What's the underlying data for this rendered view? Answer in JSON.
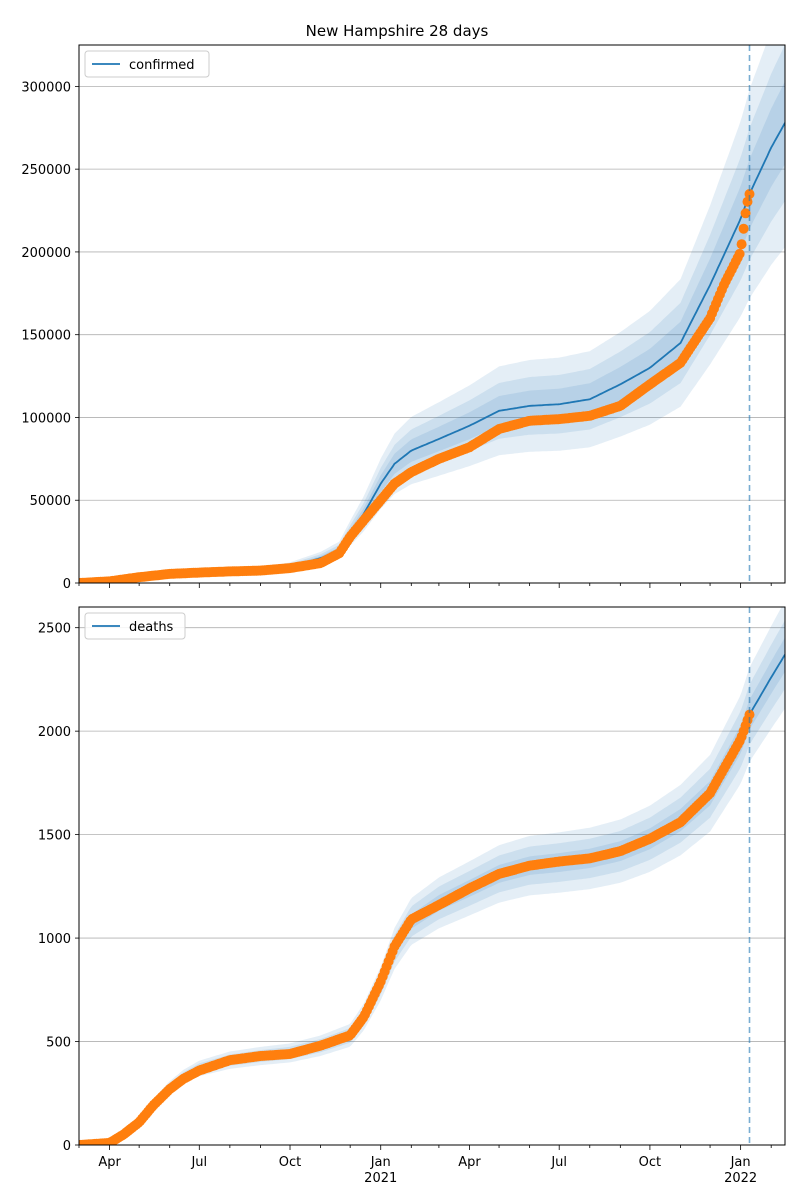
{
  "chart_data": [
    {
      "type": "line",
      "title": "New Hampshire 28 days",
      "xlabel": "",
      "ylabel": "",
      "x_range": [
        "2020-03-01",
        "2022-02-15"
      ],
      "ylim": [
        0,
        325000
      ],
      "yticks": [
        0,
        50000,
        100000,
        150000,
        200000,
        250000,
        300000
      ],
      "ytick_labels": [
        "0",
        "50000",
        "100000",
        "150000",
        "200000",
        "250000",
        "300000"
      ],
      "grid": "horizontal",
      "legend": {
        "position": "top-left",
        "entries": [
          "confirmed"
        ]
      },
      "forecast_start": "2022-01-10",
      "series": [
        {
          "name": "confirmed",
          "kind": "model",
          "color": "#1f77b4",
          "x": [
            "2020-03-01",
            "2020-04-01",
            "2020-05-01",
            "2020-06-01",
            "2020-07-01",
            "2020-08-01",
            "2020-09-01",
            "2020-10-01",
            "2020-11-01",
            "2020-11-20",
            "2020-12-01",
            "2020-12-15",
            "2021-01-01",
            "2021-01-15",
            "2021-02-01",
            "2021-03-01",
            "2021-04-01",
            "2021-05-01",
            "2021-06-01",
            "2021-07-01",
            "2021-08-01",
            "2021-09-01",
            "2021-10-01",
            "2021-11-01",
            "2021-12-01",
            "2022-01-01",
            "2022-01-10",
            "2022-02-01",
            "2022-02-15"
          ],
          "y": [
            100,
            1000,
            3500,
            5500,
            6500,
            7000,
            7500,
            10000,
            15000,
            20000,
            30000,
            42000,
            60000,
            72000,
            80000,
            87000,
            95000,
            104000,
            107000,
            108000,
            111000,
            120000,
            130000,
            145000,
            180000,
            220000,
            235000,
            263000,
            278000
          ],
          "band_inner": [
            0.08,
            0.09
          ],
          "band_mid": [
            0.15,
            0.17
          ],
          "band_outer": [
            0.24,
            0.27
          ]
        },
        {
          "name": "",
          "kind": "observed",
          "color": "#ff7f0e",
          "x": [
            "2020-03-01",
            "2020-04-01",
            "2020-05-01",
            "2020-06-01",
            "2020-07-01",
            "2020-08-01",
            "2020-09-01",
            "2020-10-01",
            "2020-11-01",
            "2020-11-20",
            "2020-12-01",
            "2020-12-15",
            "2021-01-01",
            "2021-01-15",
            "2021-02-01",
            "2021-03-01",
            "2021-04-01",
            "2021-05-01",
            "2021-06-01",
            "2021-07-01",
            "2021-08-01",
            "2021-09-01",
            "2021-10-01",
            "2021-11-01",
            "2021-12-01",
            "2021-12-15",
            "2022-01-01",
            "2022-01-07",
            "2022-01-10"
          ],
          "y": [
            0,
            1000,
            3500,
            5500,
            6300,
            7000,
            7500,
            9000,
            12000,
            18000,
            28000,
            38000,
            50000,
            60000,
            67000,
            75000,
            82000,
            93000,
            98000,
            99000,
            101000,
            107000,
            120000,
            133000,
            160000,
            180000,
            200000,
            228000,
            235000
          ]
        }
      ]
    },
    {
      "type": "line",
      "title": "",
      "xlabel": "",
      "ylabel": "",
      "x_range": [
        "2020-03-01",
        "2022-02-15"
      ],
      "ylim": [
        0,
        2600
      ],
      "yticks": [
        0,
        500,
        1000,
        1500,
        2000,
        2500
      ],
      "ytick_labels": [
        "0",
        "500",
        "1000",
        "1500",
        "2000",
        "2500"
      ],
      "xtick_labels": [
        {
          "date": "2020-04-01",
          "label": "Apr",
          "year": ""
        },
        {
          "date": "2020-07-01",
          "label": "Jul",
          "year": ""
        },
        {
          "date": "2020-10-01",
          "label": "Oct",
          "year": ""
        },
        {
          "date": "2021-01-01",
          "label": "Jan",
          "year": "2021"
        },
        {
          "date": "2021-04-01",
          "label": "Apr",
          "year": ""
        },
        {
          "date": "2021-07-01",
          "label": "Jul",
          "year": ""
        },
        {
          "date": "2021-10-01",
          "label": "Oct",
          "year": ""
        },
        {
          "date": "2022-01-01",
          "label": "Jan",
          "year": "2022"
        }
      ],
      "grid": "horizontal",
      "legend": {
        "position": "top-left",
        "entries": [
          "deaths"
        ]
      },
      "forecast_start": "2022-01-10",
      "series": [
        {
          "name": "deaths",
          "kind": "model",
          "color": "#1f77b4",
          "x": [
            "2020-03-01",
            "2020-04-01",
            "2020-04-15",
            "2020-05-01",
            "2020-05-15",
            "2020-06-01",
            "2020-06-15",
            "2020-07-01",
            "2020-08-01",
            "2020-09-01",
            "2020-10-01",
            "2020-11-01",
            "2020-12-01",
            "2020-12-15",
            "2021-01-01",
            "2021-01-15",
            "2021-02-01",
            "2021-03-01",
            "2021-04-01",
            "2021-05-01",
            "2021-06-01",
            "2021-07-01",
            "2021-08-01",
            "2021-09-01",
            "2021-10-01",
            "2021-11-01",
            "2021-12-01",
            "2022-01-01",
            "2022-01-10",
            "2022-02-01",
            "2022-02-15"
          ],
          "y": [
            0,
            10,
            50,
            120,
            200,
            280,
            330,
            370,
            410,
            430,
            445,
            480,
            530,
            620,
            780,
            950,
            1080,
            1170,
            1240,
            1310,
            1350,
            1365,
            1385,
            1420,
            1480,
            1570,
            1700,
            1960,
            2080,
            2260,
            2370
          ],
          "band_inner": [
            0.03,
            0.035
          ],
          "band_mid": [
            0.065,
            0.07
          ],
          "band_outer": [
            0.1,
            0.11
          ]
        },
        {
          "name": "",
          "kind": "observed",
          "color": "#ff7f0e",
          "x": [
            "2020-03-01",
            "2020-04-01",
            "2020-04-15",
            "2020-05-01",
            "2020-05-15",
            "2020-06-01",
            "2020-06-15",
            "2020-07-01",
            "2020-08-01",
            "2020-09-01",
            "2020-10-01",
            "2020-11-01",
            "2020-12-01",
            "2020-12-15",
            "2021-01-01",
            "2021-01-15",
            "2021-02-01",
            "2021-03-01",
            "2021-04-01",
            "2021-05-01",
            "2021-06-01",
            "2021-07-01",
            "2021-08-01",
            "2021-09-01",
            "2021-10-01",
            "2021-11-01",
            "2021-12-01",
            "2022-01-01",
            "2022-01-10"
          ],
          "y": [
            0,
            10,
            50,
            110,
            190,
            270,
            320,
            360,
            410,
            430,
            440,
            480,
            530,
            620,
            790,
            960,
            1090,
            1160,
            1240,
            1310,
            1350,
            1370,
            1385,
            1420,
            1480,
            1560,
            1700,
            1960,
            2080
          ]
        }
      ]
    }
  ]
}
